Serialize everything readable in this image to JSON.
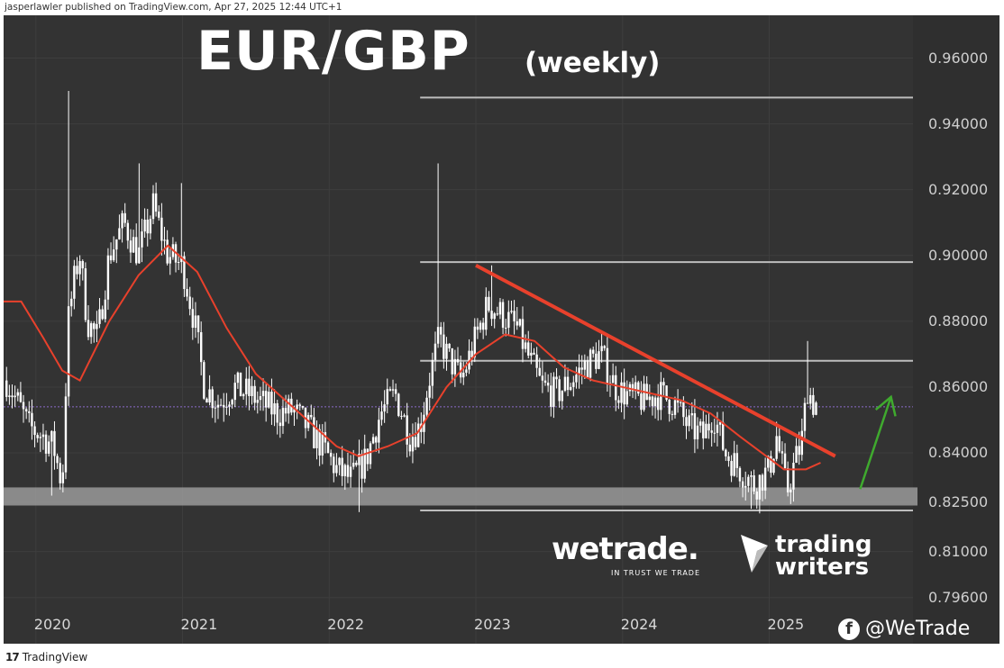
{
  "publisher_line": "jasperlawler published on TradingView.com, Apr 27, 2025 12:44 UTC+1",
  "footer": {
    "tv_logo_mark": "17",
    "tv_logo_text": "TradingView"
  },
  "title": {
    "main": "EUR/GBP",
    "sub": "(weekly)"
  },
  "branding": {
    "wetrade": "wetrade.",
    "wetrade_tagline": "IN TRUST WE TRADE",
    "trading_writers_line1": "trading",
    "trading_writers_line2": "writers",
    "social_handle": "@WeTrade",
    "social_icon": "facebook-icon"
  },
  "colors": {
    "background": "#333333",
    "candle": "#ffffff",
    "moving_average": "#e8412c",
    "trendline": "#e8412c",
    "arrow": "#3faa2e",
    "level_lines": "#bdbdbd",
    "support_band": "#9a9a9a"
  },
  "chart_data": {
    "type": "candlestick",
    "y_axis": {
      "ticks": [
        "0.96000",
        "0.94000",
        "0.92000",
        "0.90000",
        "0.88000",
        "0.86000",
        "0.84000",
        "0.82500",
        "0.81000",
        "0.79600"
      ],
      "tick_values": [
        0.96,
        0.94,
        0.92,
        0.9,
        0.88,
        0.86,
        0.84,
        0.825,
        0.81,
        0.796
      ],
      "range": [
        0.782,
        0.973
      ]
    },
    "x_axis": {
      "ticks": [
        "2020",
        "2021",
        "2022",
        "2023",
        "2024",
        "2025"
      ],
      "tick_values": [
        2020.0,
        2021.0,
        2022.0,
        2023.0,
        2024.0,
        2025.0
      ],
      "range": [
        2019.78,
        2025.98
      ]
    },
    "close_path": [
      [
        2019.8,
        0.862
      ],
      [
        2019.88,
        0.855
      ],
      [
        2019.95,
        0.848
      ],
      [
        2020.05,
        0.845
      ],
      [
        2020.12,
        0.842
      ],
      [
        2020.18,
        0.83
      ],
      [
        2020.22,
        0.88
      ],
      [
        2020.27,
        0.895
      ],
      [
        2020.3,
        0.9
      ],
      [
        2020.35,
        0.88
      ],
      [
        2020.42,
        0.875
      ],
      [
        2020.5,
        0.9
      ],
      [
        2020.6,
        0.91
      ],
      [
        2020.7,
        0.9
      ],
      [
        2020.8,
        0.915
      ],
      [
        2020.9,
        0.9
      ],
      [
        2021.0,
        0.897
      ],
      [
        2021.08,
        0.88
      ],
      [
        2021.15,
        0.86
      ],
      [
        2021.25,
        0.855
      ],
      [
        2021.35,
        0.86
      ],
      [
        2021.45,
        0.858
      ],
      [
        2021.55,
        0.855
      ],
      [
        2021.65,
        0.852
      ],
      [
        2021.75,
        0.853
      ],
      [
        2021.85,
        0.848
      ],
      [
        2021.95,
        0.842
      ],
      [
        2022.05,
        0.835
      ],
      [
        2022.15,
        0.832
      ],
      [
        2022.25,
        0.838
      ],
      [
        2022.35,
        0.852
      ],
      [
        2022.45,
        0.858
      ],
      [
        2022.55,
        0.845
      ],
      [
        2022.62,
        0.848
      ],
      [
        2022.68,
        0.862
      ],
      [
        2022.75,
        0.875
      ],
      [
        2022.8,
        0.87
      ],
      [
        2022.9,
        0.862
      ],
      [
        2023.0,
        0.875
      ],
      [
        2023.08,
        0.885
      ],
      [
        2023.18,
        0.882
      ],
      [
        2023.28,
        0.878
      ],
      [
        2023.35,
        0.87
      ],
      [
        2023.45,
        0.86
      ],
      [
        2023.55,
        0.858
      ],
      [
        2023.65,
        0.862
      ],
      [
        2023.75,
        0.867
      ],
      [
        2023.85,
        0.87
      ],
      [
        2023.95,
        0.86
      ],
      [
        2024.05,
        0.857
      ],
      [
        2024.15,
        0.856
      ],
      [
        2024.25,
        0.858
      ],
      [
        2024.35,
        0.855
      ],
      [
        2024.45,
        0.848
      ],
      [
        2024.55,
        0.845
      ],
      [
        2024.62,
        0.852
      ],
      [
        2024.7,
        0.84
      ],
      [
        2024.8,
        0.835
      ],
      [
        2024.9,
        0.83
      ],
      [
        2025.0,
        0.835
      ],
      [
        2025.05,
        0.845
      ],
      [
        2025.12,
        0.828
      ],
      [
        2025.18,
        0.838
      ],
      [
        2025.22,
        0.843
      ],
      [
        2025.26,
        0.86
      ],
      [
        2025.3,
        0.855
      ]
    ],
    "notable_highs": [
      [
        2020.22,
        0.95
      ],
      [
        2020.7,
        0.928
      ],
      [
        2021.0,
        0.922
      ],
      [
        2022.75,
        0.928
      ],
      [
        2023.1,
        0.897
      ],
      [
        2025.27,
        0.874
      ]
    ],
    "notable_lows": [
      [
        2020.1,
        0.827
      ],
      [
        2022.2,
        0.822
      ],
      [
        2024.87,
        0.823
      ],
      [
        2025.15,
        0.825
      ]
    ],
    "moving_average": [
      [
        2019.78,
        0.886
      ],
      [
        2019.9,
        0.886
      ],
      [
        2020.05,
        0.875
      ],
      [
        2020.18,
        0.865
      ],
      [
        2020.3,
        0.862
      ],
      [
        2020.5,
        0.88
      ],
      [
        2020.7,
        0.894
      ],
      [
        2020.9,
        0.903
      ],
      [
        2021.1,
        0.895
      ],
      [
        2021.3,
        0.878
      ],
      [
        2021.5,
        0.864
      ],
      [
        2021.7,
        0.856
      ],
      [
        2021.9,
        0.848
      ],
      [
        2022.05,
        0.842
      ],
      [
        2022.2,
        0.839
      ],
      [
        2022.4,
        0.842
      ],
      [
        2022.6,
        0.846
      ],
      [
        2022.8,
        0.86
      ],
      [
        2023.0,
        0.87
      ],
      [
        2023.2,
        0.876
      ],
      [
        2023.4,
        0.874
      ],
      [
        2023.6,
        0.866
      ],
      [
        2023.8,
        0.862
      ],
      [
        2024.0,
        0.86
      ],
      [
        2024.2,
        0.858
      ],
      [
        2024.4,
        0.856
      ],
      [
        2024.6,
        0.852
      ],
      [
        2024.8,
        0.845
      ],
      [
        2024.95,
        0.84
      ],
      [
        2025.1,
        0.835
      ],
      [
        2025.25,
        0.835
      ],
      [
        2025.35,
        0.837
      ]
    ],
    "trendline": {
      "from": [
        2023.0,
        0.897
      ],
      "to": [
        2025.45,
        0.839
      ]
    },
    "horizontal_levels": [
      {
        "value": 0.948,
        "from_x": 2022.62,
        "to_x": 2025.98
      },
      {
        "value": 0.898,
        "from_x": 2022.62,
        "to_x": 2025.98
      },
      {
        "value": 0.868,
        "from_x": 2022.62,
        "to_x": 2025.98
      },
      {
        "value": 0.8225,
        "from_x": 2022.62,
        "to_x": 2025.98
      }
    ],
    "support_zone": {
      "low": 0.824,
      "high": 0.8295
    },
    "current_price": 0.854,
    "arrow": {
      "from": [
        2025.62,
        0.829
      ],
      "to": [
        2025.83,
        0.857
      ]
    },
    "grid": true
  }
}
